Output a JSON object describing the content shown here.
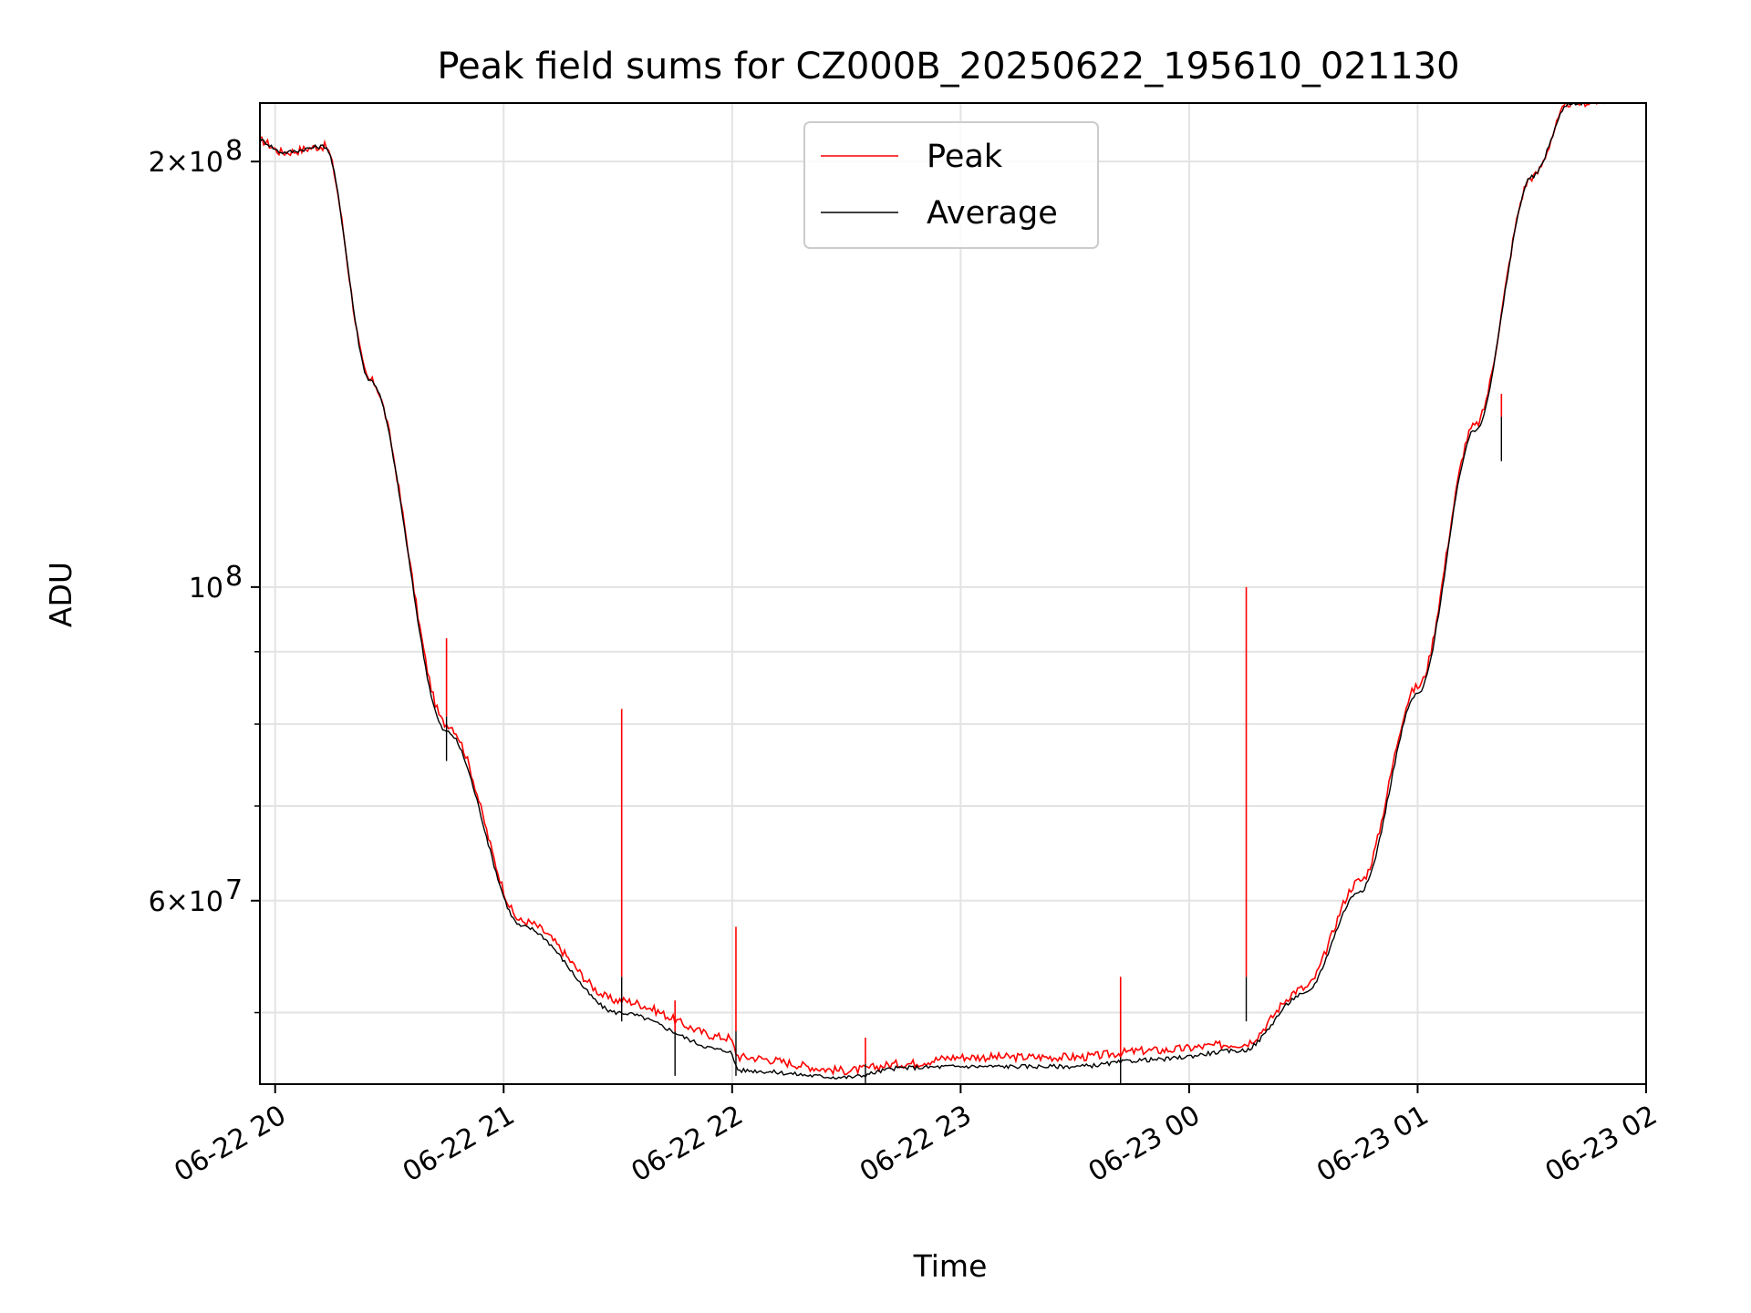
{
  "chart_data": {
    "type": "line",
    "title": "Peak field sums for CZ000B_20250622_195610_021130",
    "xlabel": "Time",
    "ylabel": "ADU",
    "yscale": "log",
    "grid": true,
    "legend_position": "top-center",
    "xlim": [
      "2025-06-22 19:56",
      "2025-06-23 02:00"
    ],
    "ylim": [
      44500000,
      220000000
    ],
    "x_ticks": [
      "06-22 20",
      "06-22 21",
      "06-22 22",
      "06-22 23",
      "06-23 00",
      "06-23 01",
      "06-23 02"
    ],
    "y_ticks": [
      {
        "value": 200000000,
        "base": "2×10",
        "exp": "8"
      },
      {
        "value": 100000000,
        "base": "10",
        "exp": "8"
      },
      {
        "value": 60000000,
        "base": "6×10",
        "exp": "7"
      }
    ],
    "series": [
      {
        "name": "Peak",
        "color": "#ff0000",
        "x": [
          "2025-06-22 19:56",
          "2025-06-22 20:02",
          "2025-06-22 20:13",
          "2025-06-22 20:25",
          "2025-06-22 20:45",
          "2025-06-22 21:05",
          "2025-06-22 21:30",
          "2025-06-22 21:59",
          "2025-06-22 22:02",
          "2025-06-22 22:30",
          "2025-06-22 22:45",
          "2025-06-22 23:00",
          "2025-06-22 23:30",
          "2025-06-22 23:50",
          "2025-06-23 00:14",
          "2025-06-23 00:30",
          "2025-06-23 00:45",
          "2025-06-23 01:00",
          "2025-06-23 01:15",
          "2025-06-23 01:30",
          "2025-06-23 01:40",
          "2025-06-23 02:00"
        ],
        "y": [
          207000000,
          203000000,
          205000000,
          140000000,
          80000000,
          58000000,
          51000000,
          48000000,
          46500000,
          45500000,
          46000000,
          46500000,
          46500000,
          47000000,
          47500000,
          52000000,
          62000000,
          85000000,
          130000000,
          195000000,
          220000000,
          222000000
        ]
      },
      {
        "name": "Average",
        "color": "#000000",
        "x": [
          "2025-06-22 19:56",
          "2025-06-22 20:02",
          "2025-06-22 20:13",
          "2025-06-22 20:25",
          "2025-06-22 20:45",
          "2025-06-22 21:05",
          "2025-06-22 21:30",
          "2025-06-22 21:59",
          "2025-06-22 22:02",
          "2025-06-22 22:30",
          "2025-06-22 22:45",
          "2025-06-22 23:00",
          "2025-06-22 23:30",
          "2025-06-22 23:50",
          "2025-06-23 00:14",
          "2025-06-23 00:30",
          "2025-06-23 00:45",
          "2025-06-23 01:00",
          "2025-06-23 01:15",
          "2025-06-23 01:30",
          "2025-06-23 01:40",
          "2025-06-23 02:00"
        ],
        "y": [
          207000000,
          203000000,
          205000000,
          140000000,
          79000000,
          57500000,
          50000000,
          47000000,
          45500000,
          45000000,
          45700000,
          45800000,
          45800000,
          46300000,
          47000000,
          51500000,
          61000000,
          84000000,
          129000000,
          195000000,
          220000000,
          222000000
        ]
      }
    ],
    "spikes": [
      {
        "time": "2025-06-22 20:45",
        "peak": 92000000,
        "average": 81000000
      },
      {
        "time": "2025-06-22 21:31",
        "peak": 82000000,
        "average": 53000000
      },
      {
        "time": "2025-06-22 21:45",
        "peak": 51000000,
        "average": 48500000
      },
      {
        "time": "2025-06-22 22:01",
        "peak": 57500000,
        "average": 48500000
      },
      {
        "time": "2025-06-22 22:35",
        "peak": 48000000,
        "average": 46000000
      },
      {
        "time": "2025-06-22 23:42",
        "peak": 53000000,
        "average": 46500000
      },
      {
        "time": "2025-06-23 00:15",
        "peak": 100000000,
        "average": 53000000
      },
      {
        "time": "2025-06-23 01:22",
        "peak": 137000000,
        "average": 132000000
      }
    ]
  }
}
